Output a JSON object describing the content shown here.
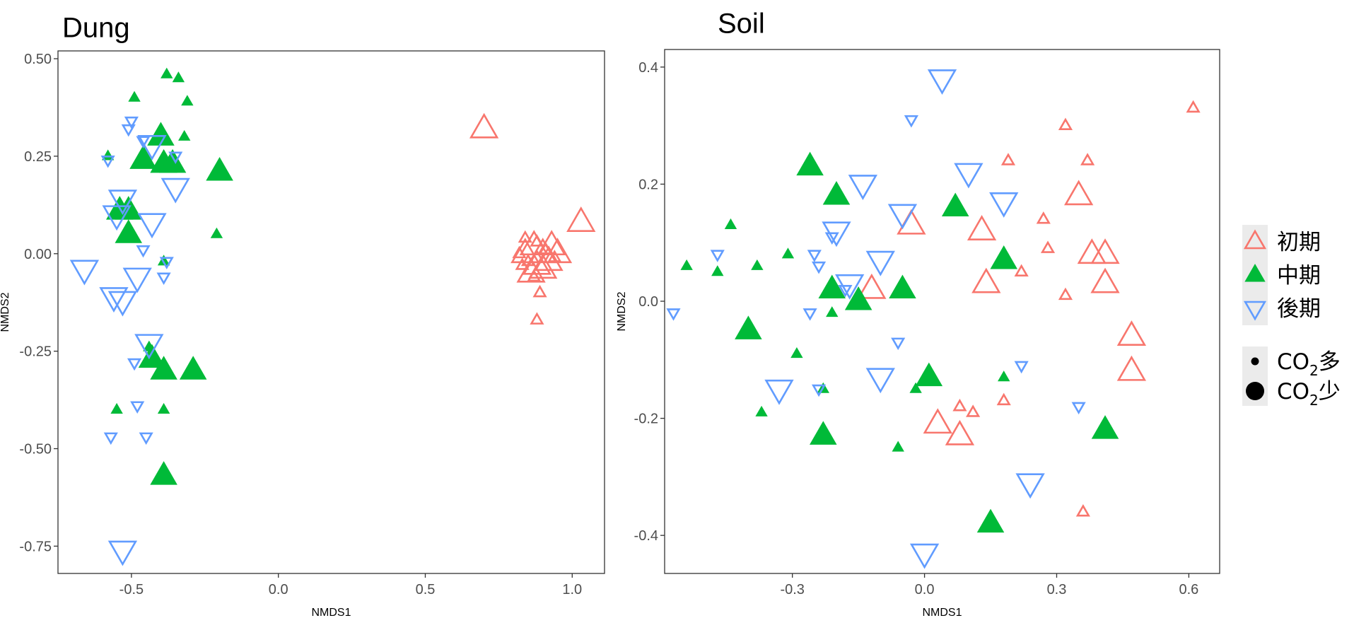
{
  "chart_data": [
    {
      "type": "scatter",
      "title": "Dung",
      "xlabel": "NMDS1",
      "ylabel": "NMDS2",
      "xlim": [
        -0.75,
        1.11
      ],
      "ylim": [
        -0.82,
        0.52
      ],
      "xticks": [
        -0.5,
        0.0,
        0.5,
        1.0
      ],
      "xtick_labels": [
        "-0.5",
        "0.0",
        "0.5",
        "1.0"
      ],
      "yticks": [
        0.5,
        0.25,
        0.0,
        -0.25,
        -0.5,
        -0.75
      ],
      "ytick_labels": [
        "0.50",
        "0.25",
        "0.00",
        "-0.25",
        "-0.50",
        "-0.75"
      ],
      "grid": false,
      "series": [
        {
          "name": "初期",
          "shape": "triangle-up-open",
          "color": "#F8766D",
          "points": [
            {
              "x": 0.7,
              "y": 0.32,
              "size": "large"
            },
            {
              "x": 1.03,
              "y": 0.08,
              "size": "large"
            },
            {
              "x": 0.84,
              "y": 0.0,
              "size": "large"
            },
            {
              "x": 0.87,
              "y": 0.02,
              "size": "large"
            },
            {
              "x": 0.9,
              "y": 0.0,
              "size": "large"
            },
            {
              "x": 0.93,
              "y": 0.02,
              "size": "large"
            },
            {
              "x": 0.95,
              "y": 0.0,
              "size": "large"
            },
            {
              "x": 0.88,
              "y": -0.03,
              "size": "large"
            },
            {
              "x": 0.92,
              "y": -0.02,
              "size": "large"
            },
            {
              "x": 0.86,
              "y": -0.05,
              "size": "large"
            },
            {
              "x": 0.9,
              "y": -0.04,
              "size": "large"
            },
            {
              "x": 0.85,
              "y": -0.02,
              "size": "small"
            },
            {
              "x": 0.88,
              "y": 0.03,
              "size": "small"
            },
            {
              "x": 0.84,
              "y": 0.04,
              "size": "small"
            },
            {
              "x": 0.82,
              "y": 0.0,
              "size": "small"
            },
            {
              "x": 0.83,
              "y": -0.03,
              "size": "small"
            },
            {
              "x": 0.87,
              "y": -0.06,
              "size": "small"
            },
            {
              "x": 0.91,
              "y": 0.01,
              "size": "small"
            },
            {
              "x": 0.94,
              "y": -0.01,
              "size": "small"
            },
            {
              "x": 0.89,
              "y": -0.1,
              "size": "small"
            },
            {
              "x": 0.88,
              "y": -0.17,
              "size": "small"
            }
          ]
        },
        {
          "name": "中期",
          "shape": "triangle-up-filled",
          "color": "#00BA38",
          "points": [
            {
              "x": -0.4,
              "y": 0.3,
              "size": "large"
            },
            {
              "x": -0.46,
              "y": 0.24,
              "size": "large"
            },
            {
              "x": -0.39,
              "y": 0.23,
              "size": "large"
            },
            {
              "x": -0.36,
              "y": 0.23,
              "size": "large"
            },
            {
              "x": -0.2,
              "y": 0.21,
              "size": "large"
            },
            {
              "x": -0.54,
              "y": 0.11,
              "size": "large"
            },
            {
              "x": -0.51,
              "y": 0.11,
              "size": "large"
            },
            {
              "x": -0.51,
              "y": 0.05,
              "size": "large"
            },
            {
              "x": -0.43,
              "y": -0.27,
              "size": "large"
            },
            {
              "x": -0.39,
              "y": -0.3,
              "size": "large"
            },
            {
              "x": -0.29,
              "y": -0.3,
              "size": "large"
            },
            {
              "x": -0.39,
              "y": -0.57,
              "size": "large"
            },
            {
              "x": -0.38,
              "y": 0.46,
              "size": "small"
            },
            {
              "x": -0.34,
              "y": 0.45,
              "size": "small"
            },
            {
              "x": -0.49,
              "y": 0.4,
              "size": "small"
            },
            {
              "x": -0.31,
              "y": 0.39,
              "size": "small"
            },
            {
              "x": -0.32,
              "y": 0.3,
              "size": "small"
            },
            {
              "x": -0.58,
              "y": 0.25,
              "size": "small"
            },
            {
              "x": -0.21,
              "y": 0.05,
              "size": "small"
            },
            {
              "x": -0.39,
              "y": -0.02,
              "size": "small"
            },
            {
              "x": -0.44,
              "y": -0.24,
              "size": "small"
            },
            {
              "x": -0.55,
              "y": -0.4,
              "size": "small"
            },
            {
              "x": -0.39,
              "y": -0.4,
              "size": "small"
            }
          ]
        },
        {
          "name": "後期",
          "shape": "triangle-down-open",
          "color": "#619CFF",
          "points": [
            {
              "x": -0.35,
              "y": 0.17,
              "size": "large"
            },
            {
              "x": -0.53,
              "y": 0.14,
              "size": "large"
            },
            {
              "x": -0.55,
              "y": 0.1,
              "size": "large"
            },
            {
              "x": -0.43,
              "y": 0.08,
              "size": "large"
            },
            {
              "x": -0.66,
              "y": -0.04,
              "size": "large"
            },
            {
              "x": -0.48,
              "y": -0.06,
              "size": "large"
            },
            {
              "x": -0.56,
              "y": -0.11,
              "size": "large"
            },
            {
              "x": -0.53,
              "y": -0.12,
              "size": "large"
            },
            {
              "x": -0.44,
              "y": -0.23,
              "size": "large"
            },
            {
              "x": -0.53,
              "y": -0.76,
              "size": "large"
            },
            {
              "x": -0.43,
              "y": 0.28,
              "size": "large"
            },
            {
              "x": -0.5,
              "y": 0.34,
              "size": "small"
            },
            {
              "x": -0.51,
              "y": 0.32,
              "size": "small"
            },
            {
              "x": -0.46,
              "y": 0.29,
              "size": "small"
            },
            {
              "x": -0.58,
              "y": 0.24,
              "size": "small"
            },
            {
              "x": -0.35,
              "y": 0.25,
              "size": "small"
            },
            {
              "x": -0.46,
              "y": 0.01,
              "size": "small"
            },
            {
              "x": -0.38,
              "y": -0.02,
              "size": "small"
            },
            {
              "x": -0.39,
              "y": -0.06,
              "size": "small"
            },
            {
              "x": -0.49,
              "y": -0.28,
              "size": "small"
            },
            {
              "x": -0.48,
              "y": -0.39,
              "size": "small"
            },
            {
              "x": -0.57,
              "y": -0.47,
              "size": "small"
            },
            {
              "x": -0.45,
              "y": -0.47,
              "size": "small"
            }
          ]
        }
      ]
    },
    {
      "type": "scatter",
      "title": "Soil",
      "xlabel": "NMDS1",
      "ylabel": "NMDS2",
      "xlim": [
        -0.59,
        0.67
      ],
      "ylim": [
        -0.465,
        0.43
      ],
      "xticks": [
        -0.3,
        0.0,
        0.3,
        0.6
      ],
      "xtick_labels": [
        "-0.3",
        "0.0",
        "0.3",
        "0.6"
      ],
      "yticks": [
        0.4,
        0.2,
        0.0,
        -0.2,
        -0.4
      ],
      "ytick_labels": [
        "0.4",
        "0.2",
        "0.0",
        "-0.2",
        "-0.4"
      ],
      "grid": false,
      "series": [
        {
          "name": "初期",
          "shape": "triangle-up-open",
          "color": "#F8766D",
          "points": [
            {
              "x": 0.35,
              "y": 0.18,
              "size": "large"
            },
            {
              "x": 0.13,
              "y": 0.12,
              "size": "large"
            },
            {
              "x": -0.03,
              "y": 0.13,
              "size": "large"
            },
            {
              "x": 0.38,
              "y": 0.08,
              "size": "large"
            },
            {
              "x": 0.41,
              "y": 0.08,
              "size": "large"
            },
            {
              "x": 0.14,
              "y": 0.03,
              "size": "large"
            },
            {
              "x": 0.41,
              "y": 0.03,
              "size": "large"
            },
            {
              "x": -0.12,
              "y": 0.02,
              "size": "large"
            },
            {
              "x": 0.47,
              "y": -0.06,
              "size": "large"
            },
            {
              "x": 0.47,
              "y": -0.12,
              "size": "large"
            },
            {
              "x": 0.03,
              "y": -0.21,
              "size": "large"
            },
            {
              "x": 0.08,
              "y": -0.23,
              "size": "large"
            },
            {
              "x": 0.61,
              "y": 0.33,
              "size": "small"
            },
            {
              "x": 0.32,
              "y": 0.3,
              "size": "small"
            },
            {
              "x": 0.37,
              "y": 0.24,
              "size": "small"
            },
            {
              "x": 0.19,
              "y": 0.24,
              "size": "small"
            },
            {
              "x": 0.27,
              "y": 0.14,
              "size": "small"
            },
            {
              "x": 0.28,
              "y": 0.09,
              "size": "small"
            },
            {
              "x": 0.22,
              "y": 0.05,
              "size": "small"
            },
            {
              "x": 0.32,
              "y": 0.01,
              "size": "small"
            },
            {
              "x": 0.08,
              "y": -0.18,
              "size": "small"
            },
            {
              "x": 0.11,
              "y": -0.19,
              "size": "small"
            },
            {
              "x": 0.18,
              "y": -0.17,
              "size": "small"
            },
            {
              "x": 0.36,
              "y": -0.36,
              "size": "small"
            }
          ]
        },
        {
          "name": "中期",
          "shape": "triangle-up-filled",
          "color": "#00BA38",
          "points": [
            {
              "x": -0.26,
              "y": 0.23,
              "size": "large"
            },
            {
              "x": -0.2,
              "y": 0.18,
              "size": "large"
            },
            {
              "x": 0.07,
              "y": 0.16,
              "size": "large"
            },
            {
              "x": 0.18,
              "y": 0.07,
              "size": "large"
            },
            {
              "x": -0.21,
              "y": 0.02,
              "size": "large"
            },
            {
              "x": -0.05,
              "y": 0.02,
              "size": "large"
            },
            {
              "x": -0.15,
              "y": 0.0,
              "size": "large"
            },
            {
              "x": -0.4,
              "y": -0.05,
              "size": "large"
            },
            {
              "x": 0.01,
              "y": -0.13,
              "size": "large"
            },
            {
              "x": -0.23,
              "y": -0.23,
              "size": "large"
            },
            {
              "x": 0.41,
              "y": -0.22,
              "size": "large"
            },
            {
              "x": 0.15,
              "y": -0.38,
              "size": "large"
            },
            {
              "x": -0.44,
              "y": 0.13,
              "size": "small"
            },
            {
              "x": -0.31,
              "y": 0.08,
              "size": "small"
            },
            {
              "x": -0.54,
              "y": 0.06,
              "size": "small"
            },
            {
              "x": -0.38,
              "y": 0.06,
              "size": "small"
            },
            {
              "x": -0.47,
              "y": 0.05,
              "size": "small"
            },
            {
              "x": -0.21,
              "y": -0.02,
              "size": "small"
            },
            {
              "x": -0.29,
              "y": -0.09,
              "size": "small"
            },
            {
              "x": 0.18,
              "y": -0.13,
              "size": "small"
            },
            {
              "x": -0.23,
              "y": -0.15,
              "size": "small"
            },
            {
              "x": -0.02,
              "y": -0.15,
              "size": "small"
            },
            {
              "x": -0.37,
              "y": -0.19,
              "size": "small"
            },
            {
              "x": -0.06,
              "y": -0.25,
              "size": "small"
            }
          ]
        },
        {
          "name": "後期",
          "shape": "triangle-down-open",
          "color": "#619CFF",
          "points": [
            {
              "x": 0.04,
              "y": 0.38,
              "size": "large"
            },
            {
              "x": 0.1,
              "y": 0.22,
              "size": "large"
            },
            {
              "x": -0.14,
              "y": 0.2,
              "size": "large"
            },
            {
              "x": 0.18,
              "y": 0.17,
              "size": "large"
            },
            {
              "x": -0.05,
              "y": 0.15,
              "size": "large"
            },
            {
              "x": -0.2,
              "y": 0.12,
              "size": "large"
            },
            {
              "x": -0.1,
              "y": 0.07,
              "size": "large"
            },
            {
              "x": -0.17,
              "y": 0.03,
              "size": "large"
            },
            {
              "x": -0.1,
              "y": -0.13,
              "size": "large"
            },
            {
              "x": -0.33,
              "y": -0.15,
              "size": "large"
            },
            {
              "x": 0.24,
              "y": -0.31,
              "size": "large"
            },
            {
              "x": 0.0,
              "y": -0.43,
              "size": "large"
            },
            {
              "x": -0.03,
              "y": 0.31,
              "size": "small"
            },
            {
              "x": -0.21,
              "y": 0.11,
              "size": "small"
            },
            {
              "x": -0.47,
              "y": 0.08,
              "size": "small"
            },
            {
              "x": -0.25,
              "y": 0.08,
              "size": "small"
            },
            {
              "x": -0.24,
              "y": 0.06,
              "size": "small"
            },
            {
              "x": -0.18,
              "y": 0.02,
              "size": "small"
            },
            {
              "x": -0.57,
              "y": -0.02,
              "size": "small"
            },
            {
              "x": -0.26,
              "y": -0.02,
              "size": "small"
            },
            {
              "x": -0.06,
              "y": -0.07,
              "size": "small"
            },
            {
              "x": 0.22,
              "y": -0.11,
              "size": "small"
            },
            {
              "x": -0.24,
              "y": -0.15,
              "size": "small"
            },
            {
              "x": 0.35,
              "y": -0.18,
              "size": "small"
            }
          ]
        }
      ]
    }
  ],
  "legend": {
    "placement": "right",
    "shape_entries": [
      {
        "label": "初期",
        "shape": "triangle-up-open",
        "color": "#F8766D"
      },
      {
        "label": "中期",
        "shape": "triangle-up-filled",
        "color": "#00BA38"
      },
      {
        "label": "後期",
        "shape": "triangle-down-open",
        "color": "#619CFF"
      }
    ],
    "size_entries": [
      {
        "prefix": "CO",
        "subscript": "2",
        "suffix": "多",
        "size": "small"
      },
      {
        "prefix": "CO",
        "subscript": "2",
        "suffix": "少",
        "size": "large"
      }
    ]
  }
}
